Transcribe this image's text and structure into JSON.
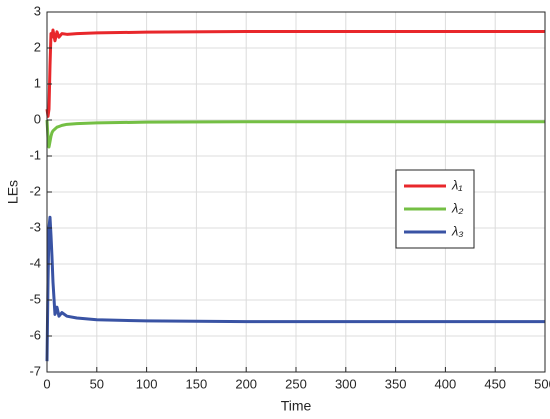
{
  "chart_data": {
    "type": "line",
    "xlabel": "Time",
    "ylabel": "LEs",
    "x": [
      0,
      1,
      2,
      3,
      4,
      5,
      6,
      8,
      10,
      12,
      15,
      20,
      30,
      50,
      100,
      200,
      300,
      400,
      500
    ],
    "series": [
      {
        "name": "λ₁",
        "color": "#e8272b",
        "values": [
          0.3,
          0.1,
          0.3,
          1.5,
          2.4,
          2.3,
          2.5,
          2.2,
          2.45,
          2.3,
          2.4,
          2.38,
          2.4,
          2.42,
          2.44,
          2.46,
          2.46,
          2.46,
          2.46
        ]
      },
      {
        "name": "λ₂",
        "color": "#74bf44",
        "values": [
          0,
          -0.5,
          -0.75,
          -0.6,
          -0.45,
          -0.35,
          -0.3,
          -0.25,
          -0.2,
          -0.18,
          -0.15,
          -0.12,
          -0.1,
          -0.08,
          -0.06,
          -0.05,
          -0.05,
          -0.05,
          -0.05
        ]
      },
      {
        "name": "λ₃",
        "color": "#3953a4",
        "values": [
          -6.7,
          -4.5,
          -3.0,
          -2.7,
          -3.2,
          -3.8,
          -4.5,
          -5.4,
          -5.2,
          -5.45,
          -5.35,
          -5.45,
          -5.5,
          -5.55,
          -5.58,
          -5.6,
          -5.6,
          -5.6,
          -5.6
        ]
      }
    ],
    "xlim": [
      0,
      500
    ],
    "xticks": [
      0,
      50,
      100,
      150,
      200,
      250,
      300,
      350,
      400,
      450,
      500
    ],
    "ylim": [
      -7,
      3
    ],
    "yticks": [
      -7,
      -6,
      -5,
      -4,
      -3,
      -2,
      -1,
      0,
      1,
      2,
      3
    ],
    "grid": true
  }
}
